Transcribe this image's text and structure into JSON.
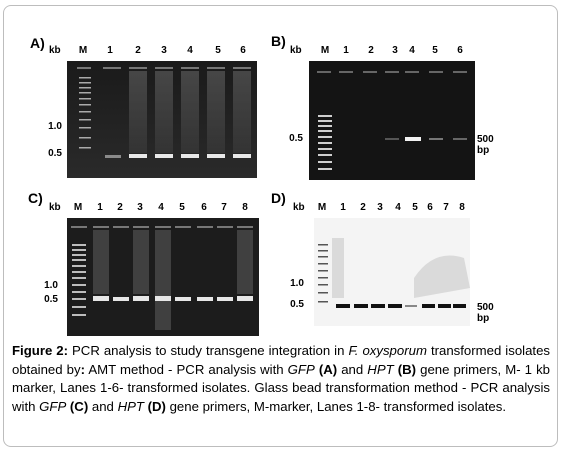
{
  "panels": {
    "A": {
      "label": "A)",
      "kb": "kb",
      "lanes": [
        "M",
        "1",
        "2",
        "3",
        "4",
        "5",
        "6"
      ],
      "sizes": [
        "1.0",
        "0.5"
      ]
    },
    "B": {
      "label": "B)",
      "kb": "kb",
      "lanes": [
        "M",
        "1",
        "2",
        "3",
        "4",
        "5",
        "6"
      ],
      "sizes": [
        "0.5"
      ],
      "band": "500 bp"
    },
    "C": {
      "label": "C)",
      "kb": "kb",
      "lanes": [
        "M",
        "1",
        "2",
        "3",
        "4",
        "5",
        "6",
        "7",
        "8"
      ],
      "sizes": [
        "1.0",
        "0.5"
      ]
    },
    "D": {
      "label": "D)",
      "kb": "kb",
      "lanes": [
        "M",
        "1",
        "2",
        "3",
        "4",
        "5",
        "6",
        "7",
        "8"
      ],
      "sizes": [
        "1.0",
        "0.5"
      ],
      "band": "500 bp"
    }
  },
  "caption": {
    "fig": "Figure 2:",
    "t1": " PCR analysis to study transgene integration in ",
    "species": "F. oxysporum",
    "t2": " transformed isolates obtained by",
    "colon": ":",
    "t3": " AMT method - PCR analysis with ",
    "gfp1": "GFP",
    "a": "(A)",
    "t4": " and ",
    "hpt1": "HPT",
    "b": "(B)",
    "t5": " gene primers, M- 1 kb marker, Lanes 1-6- transformed isolates. Glass bead transformation method - PCR analysis with ",
    "gfp2": "GFP",
    "c": "(C)",
    "t6": " and ",
    "hpt2": "HPT",
    "d": "(D)",
    "t7": " gene primers, M-marker, Lanes 1-8- transformed isolates."
  }
}
